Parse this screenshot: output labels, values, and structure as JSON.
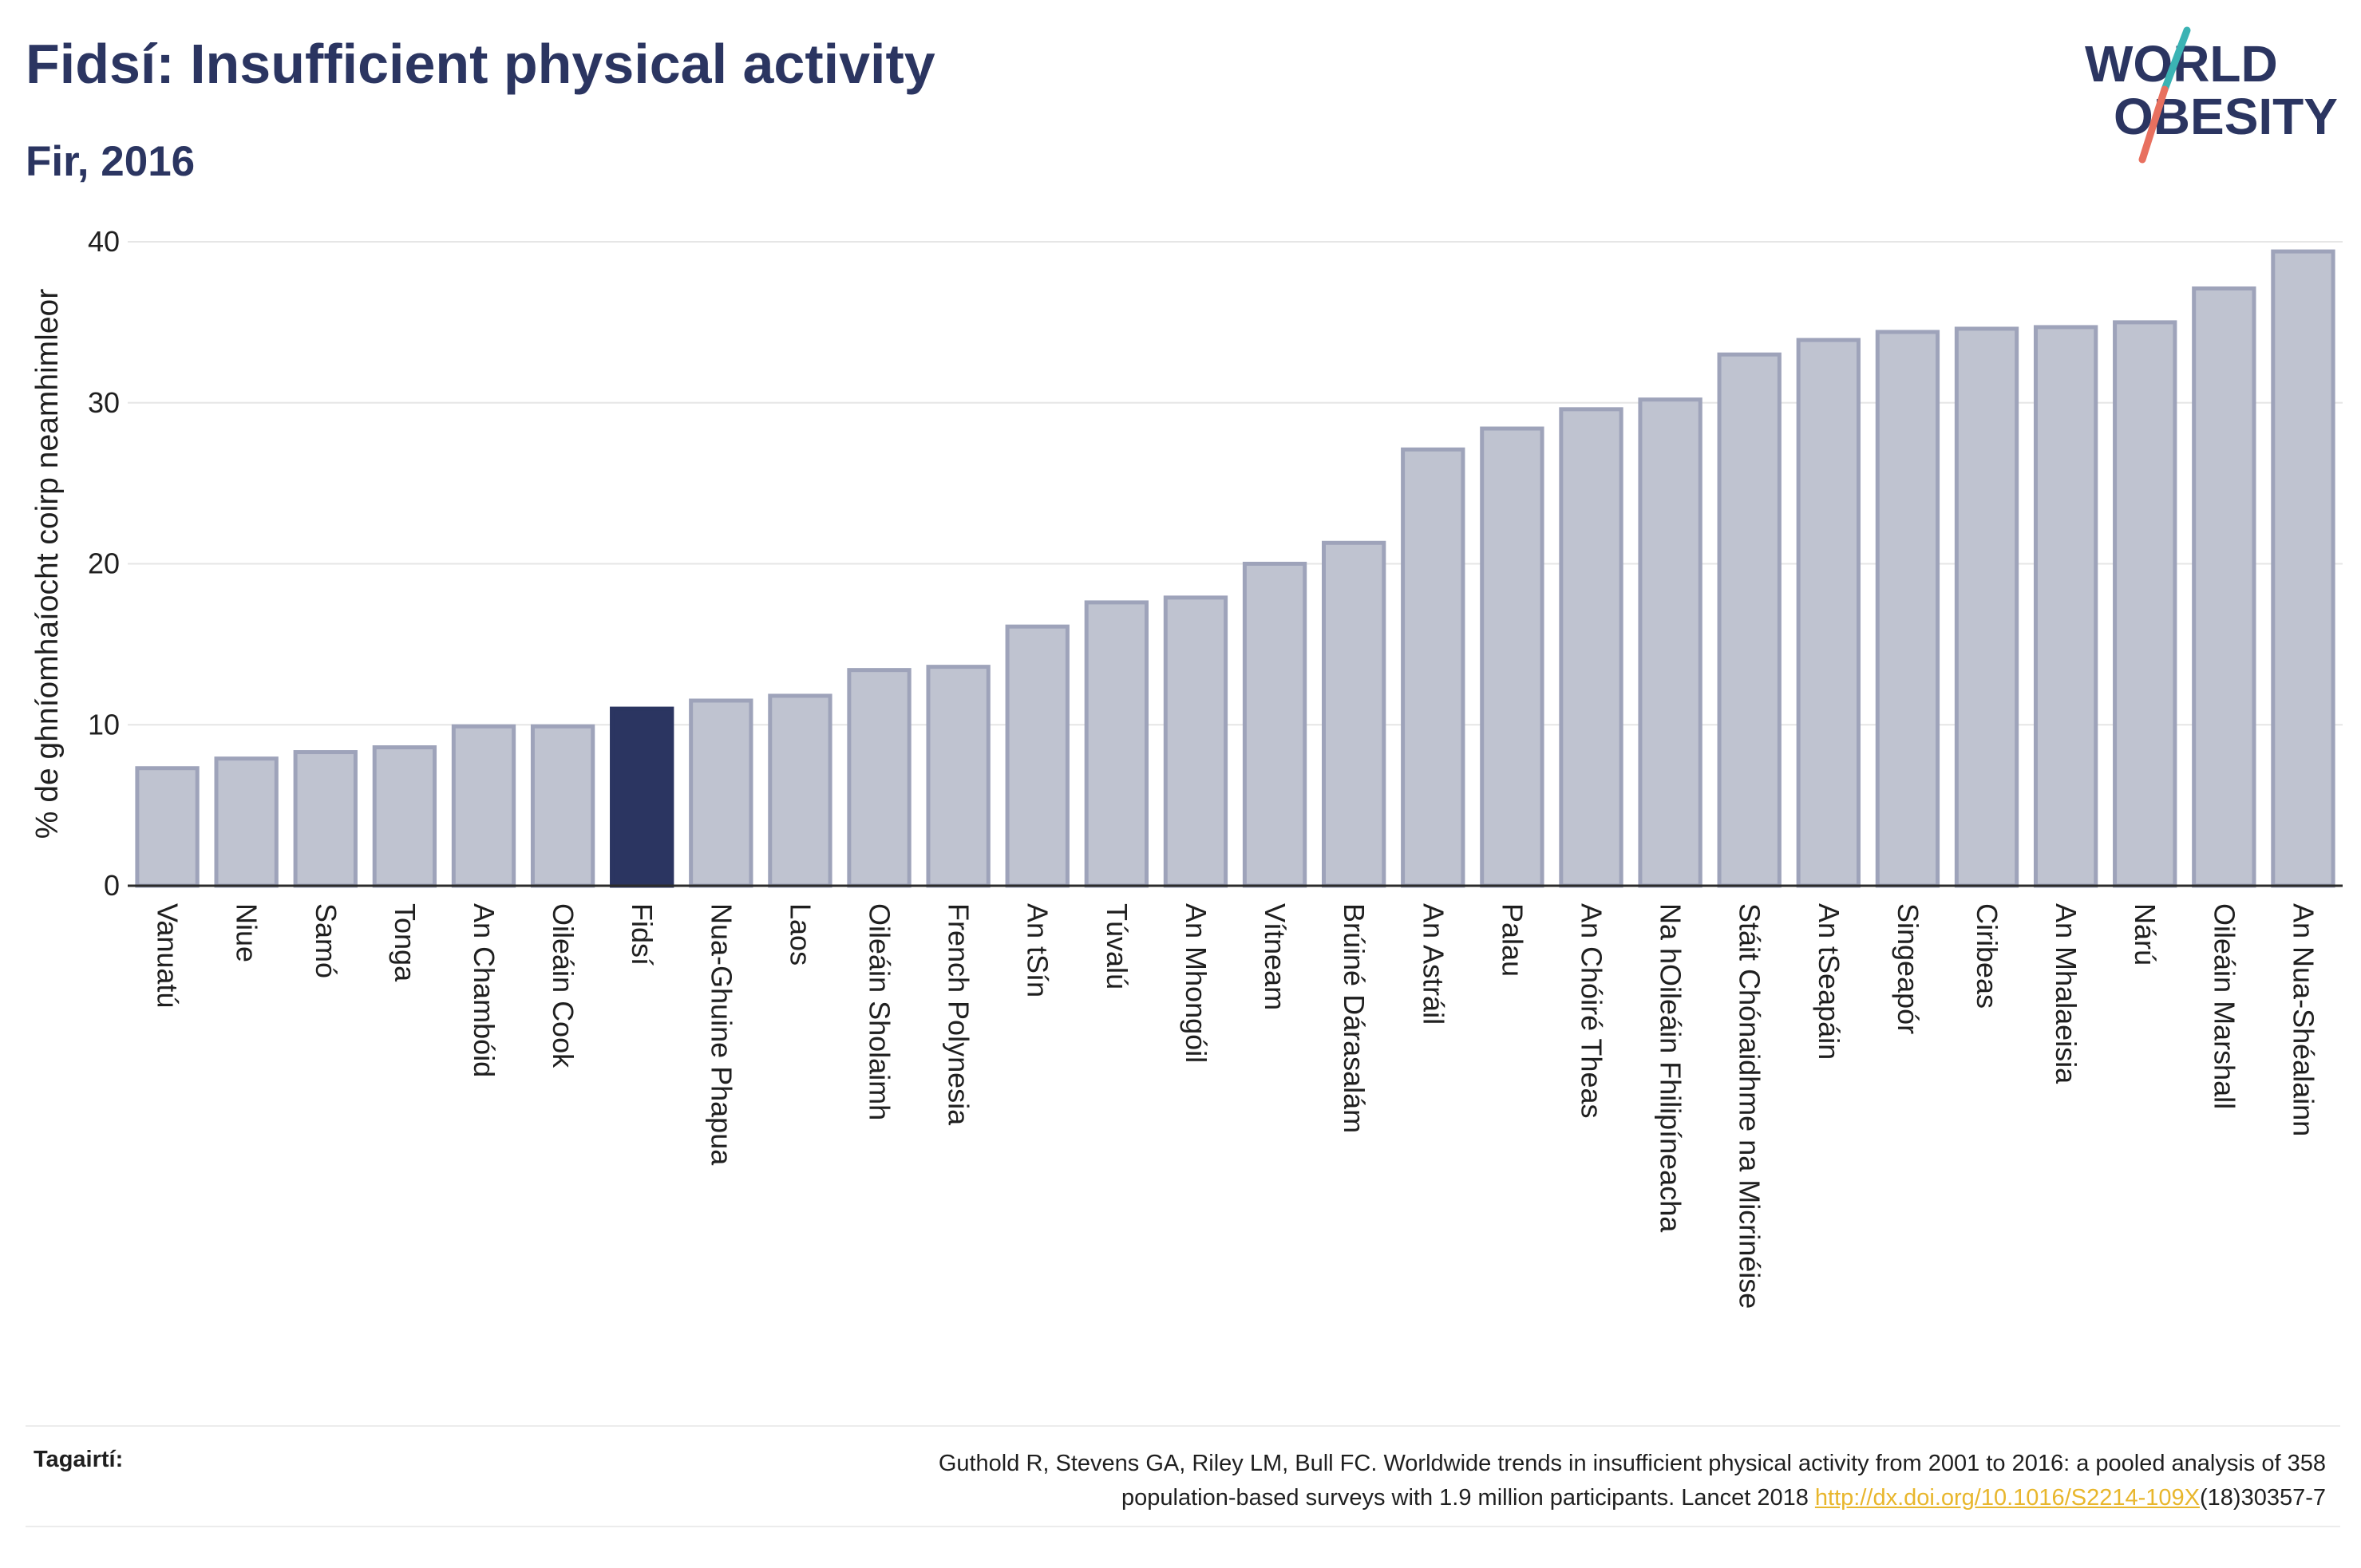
{
  "title": "Fidsí: Insufficient physical activity",
  "subtitle": "Fir, 2016",
  "logo": {
    "line1": "WORLD",
    "line2": "OBESITY"
  },
  "colors": {
    "highlight": "#2b3561",
    "bar_fill": "#bfc3d0",
    "bar_stroke": "#9ea3ba",
    "title": "#2b3561",
    "logo_teal": "#3bb3b4",
    "logo_coral": "#e8705f",
    "link": "#e8b62c"
  },
  "chart_data": {
    "type": "bar",
    "ylabel": "% de ghníomhaíocht coirp neamhimleor",
    "xlabel": "",
    "ylim": [
      0,
      40
    ],
    "yticks": [
      0,
      10,
      20,
      30,
      40
    ],
    "grid": true,
    "highlight": "Fidsí",
    "categories": [
      "Vanuatú",
      "Niue",
      "Samó",
      "Tonga",
      "An Chambóid",
      "Oileáin Cook",
      "Fidsí",
      "Nua-Ghuine Phapua",
      "Laos",
      "Oileáin Sholaimh",
      "French Polynesia",
      "An tSín",
      "Túvalú",
      "An Mhongóil",
      "Vítneam",
      "Brúiné Dárasalám",
      "An Astráil",
      "Palau",
      "An Chóiré Theas",
      "Na hOileáin Fhilipíneacha",
      "Stáit Chónaidhme na Micrinéise",
      "An tSeapáin",
      "Singeapór",
      "Ciribeas",
      "An Mhalaeisia",
      "Nárú",
      "Oileáin Marshall",
      "An Nua-Shéalainn"
    ],
    "values": [
      7.3,
      7.9,
      8.3,
      8.6,
      9.9,
      9.9,
      11.0,
      11.5,
      11.8,
      13.4,
      13.6,
      16.1,
      17.6,
      17.9,
      20.0,
      21.3,
      27.1,
      28.4,
      29.6,
      30.2,
      33.0,
      33.9,
      34.4,
      34.6,
      34.7,
      35.0,
      37.1,
      39.4
    ]
  },
  "reference": {
    "label": "Tagairtí:",
    "text_line1": "Guthold R, Stevens GA, Riley LM, Bull FC. Worldwide trends in insufficient physical activity from 2001 to 2016: a pooled analysis of 358",
    "text_line2_pre": "population-based surveys with 1.9 million participants. Lancet 2018 ",
    "link_text": "http://dx.doi.org/10.1016/S2214-109X",
    "text_line2_post": "(18)30357-7"
  }
}
